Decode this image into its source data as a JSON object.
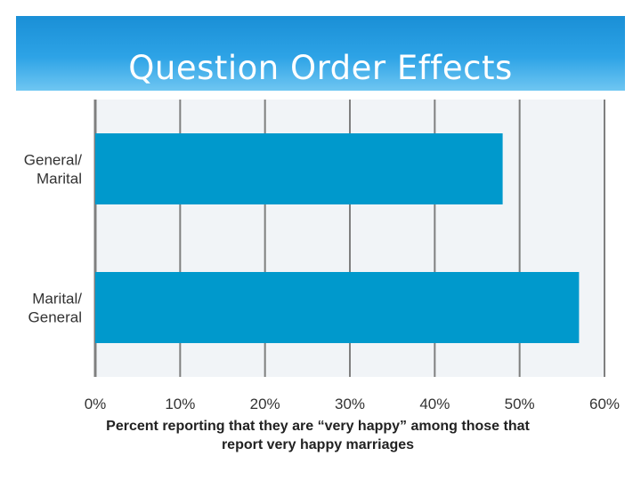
{
  "slide": {
    "title": "Question Order Effects"
  },
  "colors": {
    "banner": "#1a8fd6",
    "bar": "#0099cc",
    "plot_background": "#f1f4f7",
    "grid": "#7f7f7f"
  },
  "chart_data": {
    "type": "bar",
    "orientation": "horizontal",
    "categories": [
      "General/\nMarital",
      "Marital/\nGeneral"
    ],
    "values": [
      48,
      57
    ],
    "unit": "%",
    "xlim": [
      0,
      60
    ],
    "xticks": [
      "0%",
      "10%",
      "20%",
      "30%",
      "40%",
      "50%",
      "60%"
    ],
    "xlabel": "Percent reporting that they are “very happy” among those that\nreport very happy marriages",
    "grid": true,
    "legend": false
  }
}
